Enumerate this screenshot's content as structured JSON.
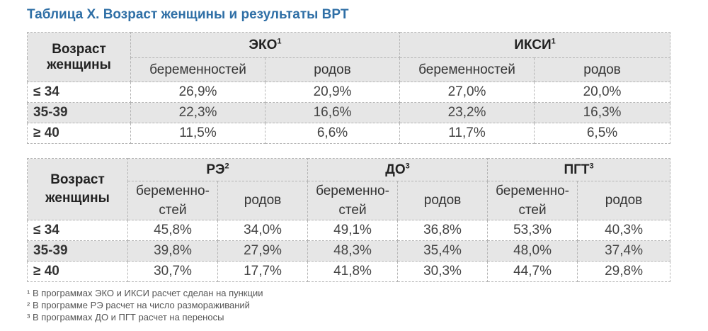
{
  "title": "Таблица X. Возраст женщины и результаты ВРТ",
  "table1": {
    "age_header": "Возраст женщины",
    "groups": [
      {
        "name": "ЭКО",
        "mark": "1"
      },
      {
        "name": "ИКСИ",
        "mark": "1"
      }
    ],
    "sub_labels": [
      "беременностей",
      "родов",
      "беременностей",
      "родов"
    ],
    "rows": [
      {
        "age": "≤ 34",
        "values": [
          "26,9%",
          "20,9%",
          "27,0%",
          "20,0%"
        ]
      },
      {
        "age": "35-39",
        "values": [
          "22,3%",
          "16,6%",
          "23,2%",
          "16,3%"
        ]
      },
      {
        "age": "≥ 40",
        "values": [
          "11,5%",
          "6,6%",
          "11,7%",
          "6,5%"
        ]
      }
    ]
  },
  "table2": {
    "age_header": "Возраст женщины",
    "groups": [
      {
        "name": "РЭ",
        "mark": "2"
      },
      {
        "name": "ДО",
        "mark": "3"
      },
      {
        "name": "ПГТ",
        "mark": "3"
      }
    ],
    "sub_labels": [
      "беременно-стей",
      "родов",
      "беременно-стей",
      "родов",
      "беременно-стей",
      "родов"
    ],
    "rows": [
      {
        "age": "≤ 34",
        "values": [
          "45,8%",
          "34,0%",
          "49,1%",
          "36,8%",
          "53,3%",
          "40,3%"
        ]
      },
      {
        "age": "35-39",
        "values": [
          "39,8%",
          "27,9%",
          "48,3%",
          "35,4%",
          "48,0%",
          "37,4%"
        ]
      },
      {
        "age": "≥ 40",
        "values": [
          "30,7%",
          "17,7%",
          "41,8%",
          "30,3%",
          "44,7%",
          "29,8%"
        ]
      }
    ]
  },
  "footnotes": [
    "¹ В программах ЭКО и ИКСИ расчет сделан на пункции",
    "² В программе РЭ расчет на число размораживаний",
    "³ В программах ДО и ПГТ расчет на переносы"
  ]
}
